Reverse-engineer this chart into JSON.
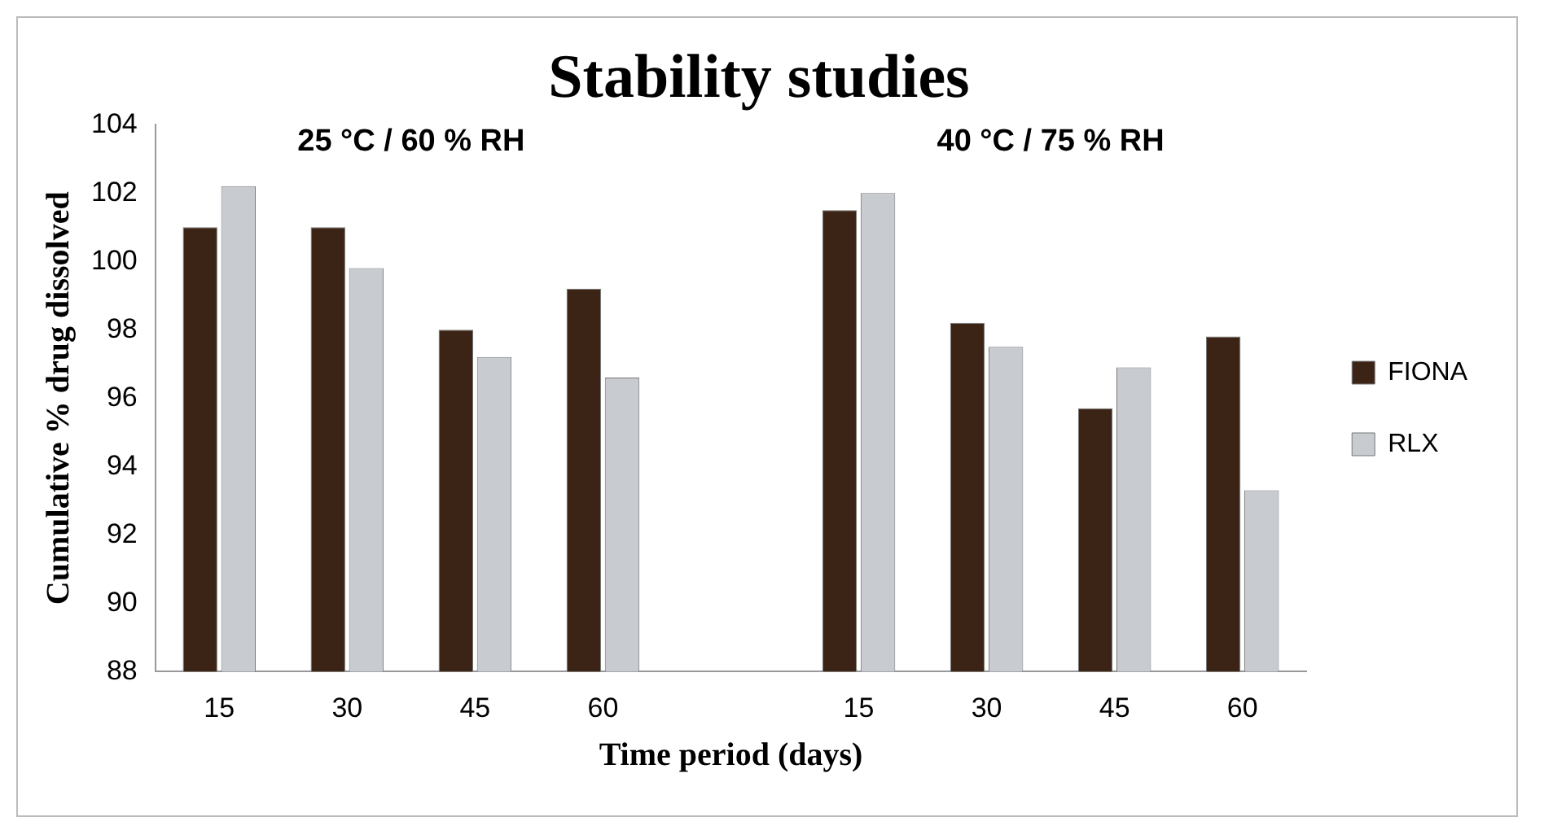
{
  "chart_data": {
    "type": "bar",
    "title": "Stability studies",
    "xlabel": "Time period (days)",
    "ylabel": "Cumulative % drug dissolved",
    "categories": [
      "15",
      "30",
      "45",
      "60",
      null,
      "15",
      "30",
      "45",
      "60"
    ],
    "series": [
      {
        "name": "FIONA",
        "color": "#3b2416",
        "values": [
          101,
          101,
          98,
          99.2,
          null,
          101.5,
          98.2,
          95.7,
          97.8
        ]
      },
      {
        "name": "RLX",
        "color": "#c8cbd0",
        "values": [
          102.2,
          99.8,
          97.2,
          96.6,
          null,
          102,
          97.5,
          96.9,
          93.3
        ]
      }
    ],
    "annotations": [
      "25 °C / 60 % RH",
      "40 °C / 75 % RH"
    ],
    "ylim": [
      88,
      104
    ],
    "yticks": [
      88,
      90,
      92,
      94,
      96,
      98,
      100,
      102,
      104
    ],
    "grid": false,
    "legend": "right"
  }
}
